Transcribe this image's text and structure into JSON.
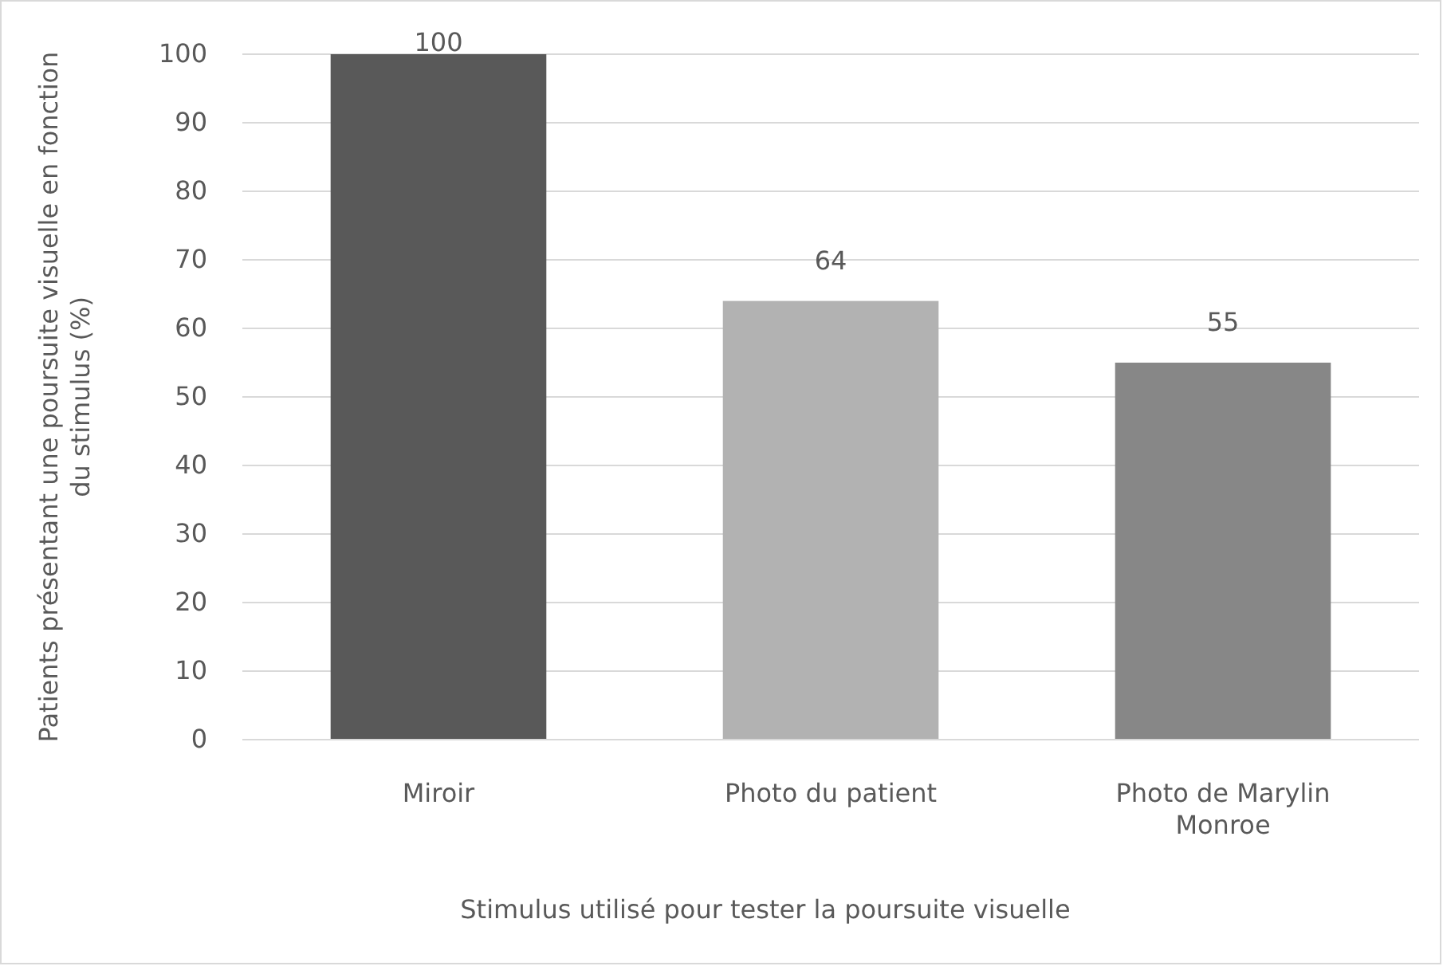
{
  "chart_data": {
    "type": "bar",
    "categories": [
      "Miroir",
      "Photo du patient",
      "Photo de Marylin Monroe"
    ],
    "values": [
      100,
      64,
      55
    ],
    "colors": [
      "#595959",
      "#b2b2b2",
      "#878787"
    ],
    "ylim": [
      0,
      100
    ],
    "yticks": [
      0,
      10,
      20,
      30,
      40,
      50,
      60,
      70,
      80,
      90,
      100
    ],
    "grid": "y",
    "data_labels": true,
    "xlabel": "Stimulus utilisé pour tester la poursuite visuelle",
    "ylabel": "Patients présentant une poursuite visuelle en fonction du stimulus (%)"
  }
}
